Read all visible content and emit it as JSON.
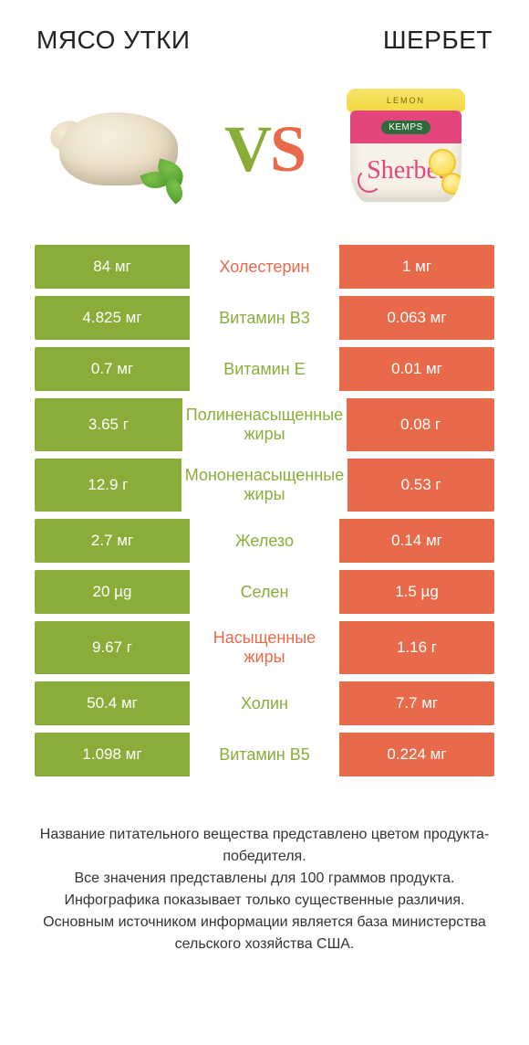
{
  "colors": {
    "green": "#8aad3a",
    "orange": "#e96a4a",
    "bg": "#ffffff",
    "text": "#333333"
  },
  "left_title": "Мясо утки",
  "right_title": "Шербет",
  "vs": {
    "v": "V",
    "s": "S"
  },
  "sherbet": {
    "lid": "LEMON",
    "brand": "KEMPS",
    "script": "Sherbet"
  },
  "rows": [
    {
      "left": "84 мг",
      "label": "Холестерин",
      "right": "1 мг",
      "winner": "right",
      "tall": false
    },
    {
      "left": "4.825 мг",
      "label": "Витамин B3",
      "right": "0.063 мг",
      "winner": "left",
      "tall": false
    },
    {
      "left": "0.7 мг",
      "label": "Витамин E",
      "right": "0.01 мг",
      "winner": "left",
      "tall": false
    },
    {
      "left": "3.65 г",
      "label": "Полиненасыщенные жиры",
      "right": "0.08 г",
      "winner": "left",
      "tall": true
    },
    {
      "left": "12.9 г",
      "label": "Мононенасыщенные жиры",
      "right": "0.53 г",
      "winner": "left",
      "tall": true
    },
    {
      "left": "2.7 мг",
      "label": "Железо",
      "right": "0.14 мг",
      "winner": "left",
      "tall": false
    },
    {
      "left": "20 µg",
      "label": "Селен",
      "right": "1.5 µg",
      "winner": "left",
      "tall": false
    },
    {
      "left": "9.67 г",
      "label": "Насыщенные жиры",
      "right": "1.16 г",
      "winner": "right",
      "tall": true
    },
    {
      "left": "50.4 мг",
      "label": "Холин",
      "right": "7.7 мг",
      "winner": "left",
      "tall": false
    },
    {
      "left": "1.098 мг",
      "label": "Витамин B5",
      "right": "0.224 мг",
      "winner": "left",
      "tall": false
    }
  ],
  "footer": {
    "l1": "Название питательного вещества представлено цветом продукта-победителя.",
    "l2": "Все значения представлены для 100 граммов продукта.",
    "l3": "Инфографика показывает только существенные различия.",
    "l4": "Основным источником информации является база министерства сельского хозяйства США."
  }
}
